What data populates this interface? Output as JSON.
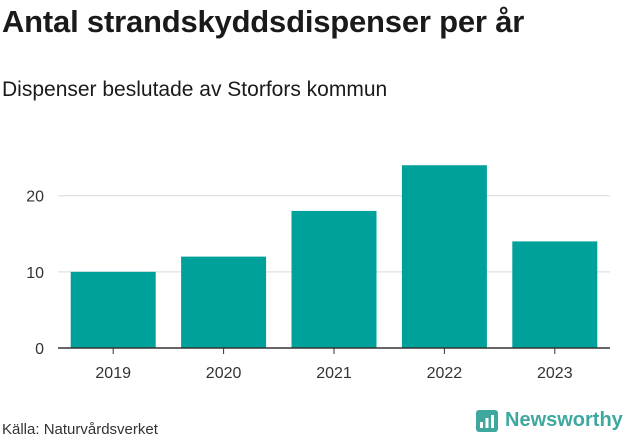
{
  "header": {
    "title": "Antal strandskyddsdispenser per år",
    "subtitle": "Dispenser beslutade av Storfors kommun"
  },
  "footer": {
    "source": "Källa: Naturvårdsverket",
    "brand": "Newsworthy"
  },
  "colors": {
    "bar": "#00a19a",
    "grid": "#d9d9d9",
    "axis": "#333333",
    "brand": "#3ea89f"
  },
  "chart_data": {
    "type": "bar",
    "title": "Antal strandskyddsdispenser per år",
    "subtitle": "Dispenser beslutade av Storfors kommun",
    "xlabel": "",
    "ylabel": "",
    "categories": [
      "2019",
      "2020",
      "2021",
      "2022",
      "2023"
    ],
    "values": [
      10,
      12,
      18,
      24,
      14
    ],
    "ylim": [
      0,
      26
    ],
    "yticks": [
      0,
      10,
      20
    ],
    "grid": true,
    "legend": "none"
  }
}
